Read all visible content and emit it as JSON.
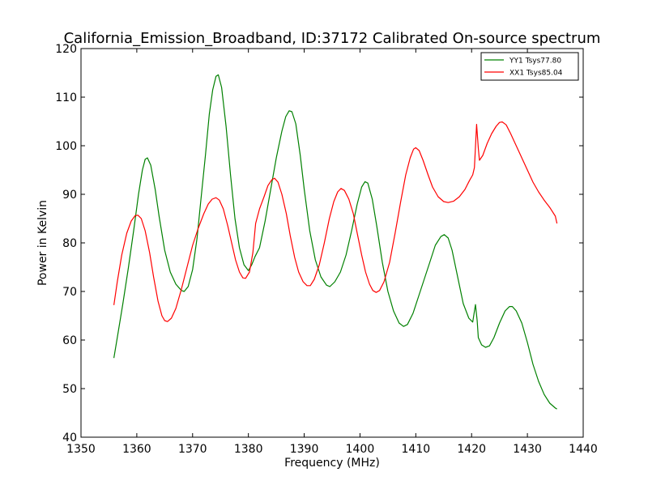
{
  "chart_data": {
    "type": "line",
    "title": "California_Emission_Broadband, ID:37172 Calibrated On-source spectrum",
    "xlabel": "Frequency (MHz)",
    "ylabel": "Power in Kelvin",
    "xlim": [
      1350,
      1440
    ],
    "ylim": [
      40,
      120
    ],
    "xticks": [
      1350,
      1360,
      1370,
      1380,
      1390,
      1400,
      1410,
      1420,
      1430,
      1440
    ],
    "yticks": [
      40,
      50,
      60,
      70,
      80,
      90,
      100,
      110,
      120
    ],
    "grid": false,
    "legend_position": "top-right",
    "series": [
      {
        "name": "YY1 Tsys77.80",
        "color": "#008000",
        "points": [
          [
            1355.9,
            56.3
          ],
          [
            1356.5,
            60.5
          ],
          [
            1357.5,
            67.5
          ],
          [
            1358.5,
            75.0
          ],
          [
            1359.5,
            83.0
          ],
          [
            1360.3,
            90.0
          ],
          [
            1361.0,
            95.0
          ],
          [
            1361.5,
            97.2
          ],
          [
            1361.9,
            97.5
          ],
          [
            1362.5,
            96.0
          ],
          [
            1363.3,
            91.0
          ],
          [
            1364.0,
            85.5
          ],
          [
            1365.0,
            78.5
          ],
          [
            1366.0,
            74.0
          ],
          [
            1367.0,
            71.5
          ],
          [
            1368.0,
            70.2
          ],
          [
            1368.5,
            70.0
          ],
          [
            1369.2,
            71.0
          ],
          [
            1370.0,
            74.5
          ],
          [
            1370.8,
            81.0
          ],
          [
            1371.5,
            89.0
          ],
          [
            1372.3,
            98.0
          ],
          [
            1373.0,
            106.5
          ],
          [
            1373.6,
            111.5
          ],
          [
            1374.2,
            114.3
          ],
          [
            1374.6,
            114.6
          ],
          [
            1375.2,
            112.0
          ],
          [
            1376.0,
            104.0
          ],
          [
            1376.8,
            94.0
          ],
          [
            1377.6,
            85.0
          ],
          [
            1378.4,
            79.0
          ],
          [
            1379.2,
            75.5
          ],
          [
            1380.0,
            74.3
          ],
          [
            1380.6,
            75.5
          ],
          [
            1381.2,
            77.2
          ],
          [
            1382.0,
            79.0
          ],
          [
            1383.0,
            84.5
          ],
          [
            1384.0,
            91.0
          ],
          [
            1385.0,
            97.5
          ],
          [
            1386.0,
            103.0
          ],
          [
            1386.7,
            106.0
          ],
          [
            1387.3,
            107.2
          ],
          [
            1387.8,
            107.0
          ],
          [
            1388.5,
            104.5
          ],
          [
            1389.3,
            98.0
          ],
          [
            1390.0,
            91.0
          ],
          [
            1391.0,
            82.5
          ],
          [
            1392.0,
            76.5
          ],
          [
            1393.0,
            73.0
          ],
          [
            1394.0,
            71.3
          ],
          [
            1394.6,
            71.0
          ],
          [
            1395.5,
            72.0
          ],
          [
            1396.5,
            74.0
          ],
          [
            1397.5,
            77.5
          ],
          [
            1398.5,
            82.5
          ],
          [
            1399.5,
            88.0
          ],
          [
            1400.3,
            91.5
          ],
          [
            1400.9,
            92.6
          ],
          [
            1401.4,
            92.3
          ],
          [
            1402.2,
            89.0
          ],
          [
            1403.0,
            83.5
          ],
          [
            1404.0,
            76.0
          ],
          [
            1405.0,
            70.0
          ],
          [
            1406.0,
            66.0
          ],
          [
            1407.0,
            63.5
          ],
          [
            1407.8,
            62.8
          ],
          [
            1408.5,
            63.2
          ],
          [
            1409.5,
            65.5
          ],
          [
            1410.5,
            69.0
          ],
          [
            1411.5,
            72.5
          ],
          [
            1412.5,
            76.0
          ],
          [
            1413.5,
            79.5
          ],
          [
            1414.5,
            81.3
          ],
          [
            1415.1,
            81.7
          ],
          [
            1415.8,
            81.0
          ],
          [
            1416.5,
            78.5
          ],
          [
            1417.5,
            73.0
          ],
          [
            1418.5,
            67.5
          ],
          [
            1419.5,
            64.5
          ],
          [
            1420.2,
            63.7
          ],
          [
            1420.7,
            67.3
          ],
          [
            1421.0,
            64.0
          ],
          [
            1421.2,
            60.5
          ],
          [
            1421.8,
            59.0
          ],
          [
            1422.5,
            58.5
          ],
          [
            1423.2,
            58.8
          ],
          [
            1424.0,
            60.5
          ],
          [
            1425.0,
            63.5
          ],
          [
            1426.0,
            66.0
          ],
          [
            1426.8,
            66.9
          ],
          [
            1427.3,
            66.9
          ],
          [
            1428.0,
            66.0
          ],
          [
            1429.0,
            63.5
          ],
          [
            1430.0,
            59.5
          ],
          [
            1431.0,
            55.0
          ],
          [
            1432.0,
            51.5
          ],
          [
            1433.0,
            48.8
          ],
          [
            1434.0,
            47.0
          ],
          [
            1435.0,
            46.0
          ],
          [
            1435.3,
            45.8
          ]
        ]
      },
      {
        "name": "XX1 Tsys85.04",
        "color": "#ff0000",
        "points": [
          [
            1355.9,
            67.2
          ],
          [
            1356.5,
            72.0
          ],
          [
            1357.3,
            77.5
          ],
          [
            1358.2,
            82.0
          ],
          [
            1359.0,
            84.5
          ],
          [
            1359.7,
            85.6
          ],
          [
            1360.2,
            85.7
          ],
          [
            1360.8,
            85.0
          ],
          [
            1361.5,
            82.5
          ],
          [
            1362.3,
            78.0
          ],
          [
            1363.0,
            73.0
          ],
          [
            1363.8,
            68.0
          ],
          [
            1364.5,
            65.0
          ],
          [
            1365.0,
            64.0
          ],
          [
            1365.5,
            63.8
          ],
          [
            1366.2,
            64.5
          ],
          [
            1367.0,
            66.5
          ],
          [
            1368.0,
            70.5
          ],
          [
            1369.0,
            75.0
          ],
          [
            1370.0,
            79.5
          ],
          [
            1371.0,
            83.0
          ],
          [
            1372.0,
            86.0
          ],
          [
            1372.8,
            88.0
          ],
          [
            1373.5,
            89.0
          ],
          [
            1374.2,
            89.3
          ],
          [
            1374.8,
            88.8
          ],
          [
            1375.5,
            87.0
          ],
          [
            1376.3,
            83.5
          ],
          [
            1377.0,
            80.0
          ],
          [
            1377.7,
            76.5
          ],
          [
            1378.4,
            74.0
          ],
          [
            1379.0,
            72.8
          ],
          [
            1379.5,
            72.7
          ],
          [
            1380.2,
            74.0
          ],
          [
            1380.8,
            78.0
          ],
          [
            1381.3,
            84.0
          ],
          [
            1382.0,
            87.0
          ],
          [
            1382.8,
            89.5
          ],
          [
            1383.5,
            91.8
          ],
          [
            1384.2,
            93.0
          ],
          [
            1384.7,
            93.3
          ],
          [
            1385.3,
            92.5
          ],
          [
            1386.0,
            90.0
          ],
          [
            1386.8,
            86.0
          ],
          [
            1387.5,
            81.5
          ],
          [
            1388.3,
            77.0
          ],
          [
            1389.0,
            74.0
          ],
          [
            1389.8,
            72.0
          ],
          [
            1390.5,
            71.2
          ],
          [
            1391.1,
            71.2
          ],
          [
            1391.8,
            72.5
          ],
          [
            1392.7,
            75.5
          ],
          [
            1393.6,
            80.0
          ],
          [
            1394.5,
            85.0
          ],
          [
            1395.3,
            88.5
          ],
          [
            1396.0,
            90.5
          ],
          [
            1396.6,
            91.2
          ],
          [
            1397.2,
            90.8
          ],
          [
            1398.0,
            89.0
          ],
          [
            1398.8,
            86.0
          ],
          [
            1399.5,
            82.0
          ],
          [
            1400.3,
            77.5
          ],
          [
            1401.0,
            74.0
          ],
          [
            1401.7,
            71.5
          ],
          [
            1402.3,
            70.2
          ],
          [
            1402.9,
            69.8
          ],
          [
            1403.5,
            70.2
          ],
          [
            1404.3,
            72.0
          ],
          [
            1405.3,
            76.0
          ],
          [
            1406.3,
            82.0
          ],
          [
            1407.3,
            88.5
          ],
          [
            1408.2,
            94.0
          ],
          [
            1409.0,
            97.5
          ],
          [
            1409.6,
            99.3
          ],
          [
            1410.0,
            99.6
          ],
          [
            1410.6,
            99.0
          ],
          [
            1411.3,
            97.0
          ],
          [
            1412.2,
            94.0
          ],
          [
            1413.0,
            91.5
          ],
          [
            1414.0,
            89.5
          ],
          [
            1415.0,
            88.5
          ],
          [
            1415.8,
            88.3
          ],
          [
            1416.8,
            88.6
          ],
          [
            1417.8,
            89.5
          ],
          [
            1418.8,
            91.0
          ],
          [
            1419.6,
            92.8
          ],
          [
            1420.2,
            94.0
          ],
          [
            1420.5,
            95.5
          ],
          [
            1420.9,
            104.4
          ],
          [
            1421.2,
            99.5
          ],
          [
            1421.4,
            97.0
          ],
          [
            1422.0,
            98.0
          ],
          [
            1422.8,
            100.5
          ],
          [
            1423.6,
            102.5
          ],
          [
            1424.4,
            104.0
          ],
          [
            1425.0,
            104.8
          ],
          [
            1425.5,
            104.9
          ],
          [
            1426.2,
            104.3
          ],
          [
            1427.0,
            102.5
          ],
          [
            1428.0,
            100.0
          ],
          [
            1429.0,
            97.5
          ],
          [
            1430.0,
            95.0
          ],
          [
            1431.0,
            92.5
          ],
          [
            1432.0,
            90.5
          ],
          [
            1433.0,
            88.8
          ],
          [
            1434.0,
            87.3
          ],
          [
            1435.0,
            85.5
          ],
          [
            1435.3,
            84.0
          ]
        ]
      }
    ]
  }
}
